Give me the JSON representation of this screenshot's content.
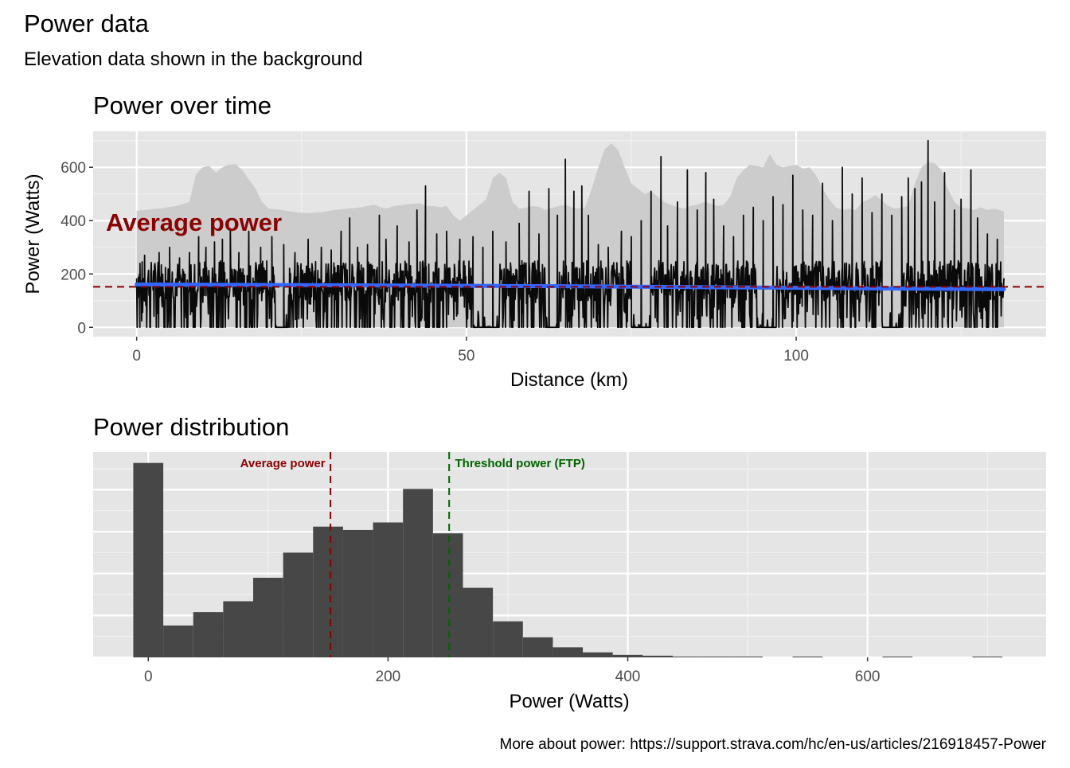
{
  "figure": {
    "title": "Power data",
    "subtitle": "Elevation data shown in the background",
    "caption": "More about power: https://support.strava.com/hc/en-us/articles/216918457-Power"
  },
  "chart_data": [
    {
      "type": "line",
      "title": "Power over time",
      "xlabel": "Distance (km)",
      "ylabel": "Power (Watts)",
      "xlim": [
        -6.6,
        137.9
      ],
      "ylim": [
        -35,
        735
      ],
      "x_ticks": [
        0,
        50,
        100
      ],
      "y_ticks": [
        0,
        200,
        400,
        600
      ],
      "grid": true,
      "colors": {
        "power_line": "#0a0a0a",
        "trend_line": "#3366ff",
        "average_line": "#8b0000",
        "elevation_area": "#cccccc",
        "panel": "#e5e5e5"
      },
      "average_power": 152,
      "average_label": "Average power",
      "trend": [
        [
          0,
          161
        ],
        [
          65,
          154
        ],
        [
          131.5,
          143
        ]
      ],
      "elevation_background": [
        [
          0,
          437
        ],
        [
          2,
          442
        ],
        [
          4,
          447
        ],
        [
          6,
          455
        ],
        [
          8,
          470
        ],
        [
          9,
          575
        ],
        [
          10,
          600
        ],
        [
          11,
          605
        ],
        [
          12,
          580
        ],
        [
          13,
          600
        ],
        [
          14,
          610
        ],
        [
          15,
          612
        ],
        [
          16,
          590
        ],
        [
          17,
          555
        ],
        [
          18,
          520
        ],
        [
          19,
          470
        ],
        [
          20,
          445
        ],
        [
          22,
          440
        ],
        [
          24,
          432
        ],
        [
          26,
          428
        ],
        [
          28,
          432
        ],
        [
          30,
          440
        ],
        [
          32,
          445
        ],
        [
          34,
          450
        ],
        [
          36,
          460
        ],
        [
          37,
          450
        ],
        [
          38,
          446
        ],
        [
          39,
          455
        ],
        [
          40,
          458
        ],
        [
          41,
          462
        ],
        [
          43,
          465
        ],
        [
          44,
          455
        ],
        [
          45,
          455
        ],
        [
          46,
          450
        ],
        [
          47,
          455
        ],
        [
          48,
          420
        ],
        [
          49,
          400
        ],
        [
          50,
          420
        ],
        [
          51,
          440
        ],
        [
          52,
          460
        ],
        [
          53,
          480
        ],
        [
          54,
          560
        ],
        [
          55,
          580
        ],
        [
          56,
          560
        ],
        [
          57,
          470
        ],
        [
          58,
          445
        ],
        [
          59,
          448
        ],
        [
          60,
          455
        ],
        [
          61,
          452
        ],
        [
          62,
          440
        ],
        [
          63,
          448
        ],
        [
          64,
          455
        ],
        [
          65,
          460
        ],
        [
          66,
          450
        ],
        [
          67,
          445
        ],
        [
          68,
          450
        ],
        [
          69,
          520
        ],
        [
          70,
          600
        ],
        [
          71,
          670
        ],
        [
          72,
          690
        ],
        [
          73,
          665
        ],
        [
          74,
          600
        ],
        [
          75,
          540
        ],
        [
          76,
          520
        ],
        [
          77,
          500
        ],
        [
          78,
          510
        ],
        [
          79,
          490
        ],
        [
          80,
          470
        ],
        [
          81,
          460
        ],
        [
          82,
          450
        ],
        [
          83,
          446
        ],
        [
          84,
          455
        ],
        [
          85,
          460
        ],
        [
          86,
          470
        ],
        [
          87,
          465
        ],
        [
          88,
          455
        ],
        [
          89,
          460
        ],
        [
          90,
          490
        ],
        [
          91,
          560
        ],
        [
          92,
          590
        ],
        [
          93,
          610
        ],
        [
          94,
          605
        ],
        [
          95,
          600
        ],
        [
          96,
          650
        ],
        [
          97,
          610
        ],
        [
          98,
          600
        ],
        [
          99,
          605
        ],
        [
          100,
          610
        ],
        [
          101,
          595
        ],
        [
          102,
          600
        ],
        [
          103,
          570
        ],
        [
          104,
          520
        ],
        [
          105,
          480
        ],
        [
          106,
          450
        ],
        [
          107,
          440
        ],
        [
          108,
          445
        ],
        [
          109,
          440
        ],
        [
          110,
          470
        ],
        [
          111,
          480
        ],
        [
          112,
          495
        ],
        [
          113,
          475
        ],
        [
          114,
          455
        ],
        [
          115,
          445
        ],
        [
          116,
          450
        ],
        [
          117,
          455
        ],
        [
          118,
          540
        ],
        [
          119,
          600
        ],
        [
          120,
          620
        ],
        [
          121,
          615
        ],
        [
          122,
          590
        ],
        [
          123,
          520
        ],
        [
          124,
          470
        ],
        [
          125,
          450
        ],
        [
          126,
          445
        ],
        [
          127,
          440
        ],
        [
          128,
          450
        ],
        [
          129,
          440
        ],
        [
          130,
          445
        ],
        [
          131.5,
          435
        ]
      ],
      "power_peaks": [
        [
          0.5,
          240
        ],
        [
          1.2,
          270
        ],
        [
          3.4,
          280
        ],
        [
          5,
          300
        ],
        [
          6.5,
          260
        ],
        [
          8,
          280
        ],
        [
          9.4,
          340
        ],
        [
          10.5,
          300
        ],
        [
          11.8,
          320
        ],
        [
          13,
          330
        ],
        [
          14.2,
          370
        ],
        [
          15.5,
          280
        ],
        [
          17,
          360
        ],
        [
          18.8,
          300
        ],
        [
          20.5,
          340
        ],
        [
          22.3,
          310
        ],
        [
          24,
          280
        ],
        [
          26,
          330
        ],
        [
          28,
          300
        ],
        [
          29.5,
          290
        ],
        [
          31,
          360
        ],
        [
          32.3,
          410
        ],
        [
          33.5,
          300
        ],
        [
          35,
          310
        ],
        [
          36.8,
          420
        ],
        [
          37.8,
          330
        ],
        [
          39.5,
          380
        ],
        [
          41.3,
          320
        ],
        [
          42.5,
          440
        ],
        [
          43.8,
          530
        ],
        [
          45.5,
          350
        ],
        [
          47,
          360
        ],
        [
          49,
          330
        ],
        [
          51,
          340
        ],
        [
          52.5,
          300
        ],
        [
          54,
          360
        ],
        [
          56,
          320
        ],
        [
          58,
          390
        ],
        [
          59.5,
          510
        ],
        [
          61,
          350
        ],
        [
          62.5,
          520
        ],
        [
          63.8,
          420
        ],
        [
          65,
          630
        ],
        [
          66.3,
          510
        ],
        [
          67.5,
          530
        ],
        [
          68.5,
          420
        ],
        [
          70,
          310
        ],
        [
          71.5,
          300
        ],
        [
          73.5,
          360
        ],
        [
          75,
          340
        ],
        [
          76.5,
          400
        ],
        [
          78,
          510
        ],
        [
          79.5,
          640
        ],
        [
          80.5,
          380
        ],
        [
          82,
          470
        ],
        [
          83.5,
          590
        ],
        [
          85,
          440
        ],
        [
          86.3,
          580
        ],
        [
          87.5,
          480
        ],
        [
          89,
          380
        ],
        [
          90.5,
          340
        ],
        [
          92,
          420
        ],
        [
          93.5,
          450
        ],
        [
          95,
          400
        ],
        [
          96.5,
          490
        ],
        [
          98,
          460
        ],
        [
          99.5,
          570
        ],
        [
          101,
          440
        ],
        [
          102.5,
          420
        ],
        [
          104,
          540
        ],
        [
          105.5,
          400
        ],
        [
          107,
          600
        ],
        [
          108.5,
          500
        ],
        [
          110,
          560
        ],
        [
          111.5,
          430
        ],
        [
          113,
          500
        ],
        [
          114.5,
          420
        ],
        [
          116,
          490
        ],
        [
          117,
          560
        ],
        [
          118,
          520
        ],
        [
          119,
          545
        ],
        [
          120,
          700
        ],
        [
          121,
          470
        ],
        [
          122.5,
          580
        ],
        [
          124,
          440
        ],
        [
          125,
          480
        ],
        [
          126.5,
          590
        ],
        [
          127.5,
          410
        ],
        [
          129,
          350
        ],
        [
          130.5,
          330
        ]
      ],
      "zero_segments": [
        [
          21,
          23
        ],
        [
          51,
          55
        ],
        [
          62,
          64
        ],
        [
          75,
          78
        ],
        [
          94,
          97
        ],
        [
          113,
          116
        ]
      ]
    },
    {
      "type": "bar",
      "title": "Power distribution",
      "xlabel": "Power (Watts)",
      "ylabel": "",
      "xlim": [
        -46,
        749
      ],
      "ylim": [
        0,
        245
      ],
      "x_ticks": [
        0,
        200,
        400,
        600
      ],
      "y_axis_labels_shown": false,
      "grid": true,
      "bin_width": 25,
      "bins": [
        {
          "center": 0,
          "count": 232
        },
        {
          "center": 25,
          "count": 38
        },
        {
          "center": 50,
          "count": 54
        },
        {
          "center": 75,
          "count": 67
        },
        {
          "center": 100,
          "count": 95
        },
        {
          "center": 125,
          "count": 125
        },
        {
          "center": 150,
          "count": 156
        },
        {
          "center": 175,
          "count": 152
        },
        {
          "center": 200,
          "count": 161
        },
        {
          "center": 225,
          "count": 201
        },
        {
          "center": 250,
          "count": 148
        },
        {
          "center": 275,
          "count": 83
        },
        {
          "center": 300,
          "count": 43
        },
        {
          "center": 325,
          "count": 24
        },
        {
          "center": 350,
          "count": 12
        },
        {
          "center": 375,
          "count": 6
        },
        {
          "center": 400,
          "count": 3
        },
        {
          "center": 425,
          "count": 2
        },
        {
          "center": 450,
          "count": 1
        },
        {
          "center": 475,
          "count": 1
        },
        {
          "center": 500,
          "count": 1
        },
        {
          "center": 525,
          "count": 0
        },
        {
          "center": 550,
          "count": 1
        },
        {
          "center": 575,
          "count": 0
        },
        {
          "center": 600,
          "count": 0
        },
        {
          "center": 625,
          "count": 1
        },
        {
          "center": 650,
          "count": 0
        },
        {
          "center": 675,
          "count": 0
        },
        {
          "center": 700,
          "count": 1
        }
      ],
      "reference_lines": [
        {
          "label": "Average power",
          "value": 152,
          "color": "#8b0000"
        },
        {
          "label": "Threshold power (FTP)",
          "value": 251,
          "color": "#006400"
        }
      ],
      "colors": {
        "bar": "#474747",
        "panel": "#e5e5e5"
      }
    }
  ]
}
